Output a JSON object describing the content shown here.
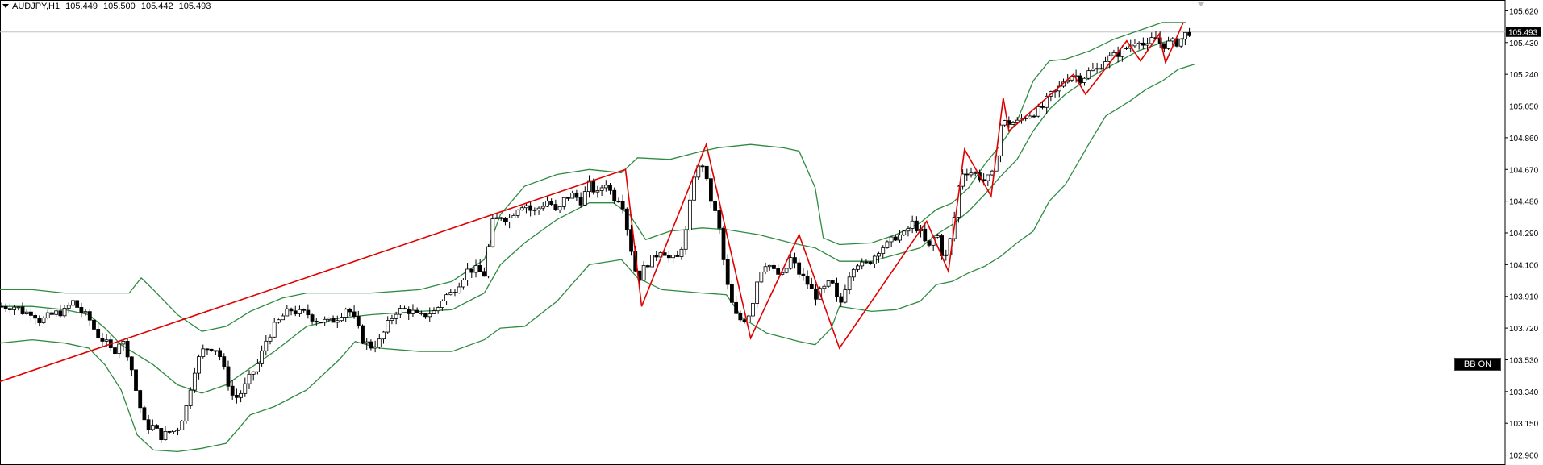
{
  "header": {
    "symbol": "AUDJPY,H1",
    "open": "105.449",
    "high": "105.500",
    "low": "105.442",
    "close": "105.493"
  },
  "bb_button": {
    "label": "BB ON"
  },
  "colors": {
    "bull": "#ffffff",
    "bear": "#000000",
    "bollinger": "#2e8b40",
    "zigzag": "#e00000",
    "price_line": "#c0c0c0"
  },
  "chart_data": {
    "type": "candlestick",
    "symbol": "AUDJPY",
    "timeframe": "H1",
    "ylim": [
      102.9,
      105.68
    ],
    "yticks": [
      "105.620",
      "105.430",
      "105.240",
      "105.050",
      "104.860",
      "104.670",
      "104.480",
      "104.290",
      "104.100",
      "103.910",
      "103.720",
      "103.530",
      "103.340",
      "103.150",
      "102.960"
    ],
    "current_price": "105.493",
    "indicators": [
      "Bollinger Bands",
      "ZigZag"
    ],
    "bollinger_upper": [
      [
        0,
        103.95
      ],
      [
        40,
        103.95
      ],
      [
        80,
        103.93
      ],
      [
        110,
        103.93
      ],
      [
        140,
        103.93
      ],
      [
        160,
        103.93
      ],
      [
        175,
        104.02
      ],
      [
        190,
        103.95
      ],
      [
        220,
        103.8
      ],
      [
        250,
        103.7
      ],
      [
        280,
        103.73
      ],
      [
        310,
        103.82
      ],
      [
        350,
        103.9
      ],
      [
        380,
        103.93
      ],
      [
        420,
        103.93
      ],
      [
        460,
        103.93
      ],
      [
        520,
        103.95
      ],
      [
        560,
        104.0
      ],
      [
        600,
        104.13
      ],
      [
        620,
        104.4
      ],
      [
        650,
        104.57
      ],
      [
        690,
        104.64
      ],
      [
        730,
        104.67
      ],
      [
        750,
        104.66
      ],
      [
        770,
        104.65
      ],
      [
        790,
        104.74
      ],
      [
        830,
        104.73
      ],
      [
        870,
        104.78
      ],
      [
        890,
        104.8
      ],
      [
        930,
        104.82
      ],
      [
        970,
        104.8
      ],
      [
        990,
        104.78
      ],
      [
        1010,
        104.56
      ],
      [
        1020,
        104.26
      ],
      [
        1040,
        104.22
      ],
      [
        1080,
        104.23
      ],
      [
        1110,
        104.28
      ],
      [
        1140,
        104.35
      ],
      [
        1160,
        104.43
      ],
      [
        1180,
        104.47
      ],
      [
        1200,
        104.56
      ],
      [
        1220,
        104.7
      ],
      [
        1240,
        104.82
      ],
      [
        1260,
        104.96
      ],
      [
        1280,
        105.2
      ],
      [
        1300,
        105.32
      ],
      [
        1320,
        105.33
      ],
      [
        1350,
        105.38
      ],
      [
        1380,
        105.45
      ],
      [
        1410,
        105.5
      ],
      [
        1440,
        105.55
      ],
      [
        1470,
        105.55
      ]
    ],
    "bollinger_middle": [
      [
        0,
        103.85
      ],
      [
        40,
        103.85
      ],
      [
        80,
        103.83
      ],
      [
        110,
        103.8
      ],
      [
        130,
        103.72
      ],
      [
        150,
        103.62
      ],
      [
        190,
        103.5
      ],
      [
        220,
        103.38
      ],
      [
        250,
        103.33
      ],
      [
        280,
        103.38
      ],
      [
        310,
        103.48
      ],
      [
        340,
        103.58
      ],
      [
        380,
        103.73
      ],
      [
        420,
        103.78
      ],
      [
        460,
        103.8
      ],
      [
        520,
        103.82
      ],
      [
        560,
        103.83
      ],
      [
        600,
        103.93
      ],
      [
        620,
        104.1
      ],
      [
        650,
        104.23
      ],
      [
        690,
        104.37
      ],
      [
        730,
        104.47
      ],
      [
        760,
        104.47
      ],
      [
        780,
        104.4
      ],
      [
        800,
        104.25
      ],
      [
        830,
        104.3
      ],
      [
        870,
        104.32
      ],
      [
        900,
        104.31
      ],
      [
        940,
        104.28
      ],
      [
        980,
        104.23
      ],
      [
        1010,
        104.2
      ],
      [
        1040,
        104.12
      ],
      [
        1080,
        104.12
      ],
      [
        1110,
        104.16
      ],
      [
        1140,
        104.2
      ],
      [
        1160,
        104.28
      ],
      [
        1180,
        104.34
      ],
      [
        1200,
        104.42
      ],
      [
        1220,
        104.52
      ],
      [
        1240,
        104.63
      ],
      [
        1260,
        104.73
      ],
      [
        1280,
        104.9
      ],
      [
        1300,
        105.03
      ],
      [
        1320,
        105.12
      ],
      [
        1350,
        105.22
      ],
      [
        1380,
        105.3
      ],
      [
        1410,
        105.38
      ],
      [
        1440,
        105.43
      ],
      [
        1470,
        105.46
      ]
    ],
    "bollinger_lower": [
      [
        0,
        103.63
      ],
      [
        40,
        103.65
      ],
      [
        80,
        103.63
      ],
      [
        110,
        103.6
      ],
      [
        130,
        103.5
      ],
      [
        150,
        103.35
      ],
      [
        170,
        103.08
      ],
      [
        190,
        102.99
      ],
      [
        220,
        102.98
      ],
      [
        250,
        103.0
      ],
      [
        280,
        103.03
      ],
      [
        310,
        103.2
      ],
      [
        340,
        103.25
      ],
      [
        380,
        103.35
      ],
      [
        420,
        103.53
      ],
      [
        440,
        103.64
      ],
      [
        470,
        103.6
      ],
      [
        520,
        103.58
      ],
      [
        560,
        103.58
      ],
      [
        600,
        103.65
      ],
      [
        620,
        103.72
      ],
      [
        650,
        103.73
      ],
      [
        690,
        103.88
      ],
      [
        730,
        104.1
      ],
      [
        770,
        104.13
      ],
      [
        790,
        104.02
      ],
      [
        820,
        103.95
      ],
      [
        870,
        103.93
      ],
      [
        900,
        103.92
      ],
      [
        920,
        103.78
      ],
      [
        950,
        103.69
      ],
      [
        990,
        103.64
      ],
      [
        1010,
        103.62
      ],
      [
        1030,
        103.72
      ],
      [
        1040,
        103.85
      ],
      [
        1080,
        103.82
      ],
      [
        1110,
        103.83
      ],
      [
        1140,
        103.88
      ],
      [
        1160,
        103.98
      ],
      [
        1180,
        104.0
      ],
      [
        1200,
        104.05
      ],
      [
        1220,
        104.09
      ],
      [
        1240,
        104.15
      ],
      [
        1260,
        104.23
      ],
      [
        1280,
        104.3
      ],
      [
        1300,
        104.48
      ],
      [
        1320,
        104.58
      ],
      [
        1350,
        104.83
      ],
      [
        1370,
        104.99
      ],
      [
        1400,
        105.08
      ],
      [
        1420,
        105.15
      ],
      [
        1440,
        105.2
      ],
      [
        1460,
        105.27
      ],
      [
        1480,
        105.3
      ]
    ],
    "zigzag": [
      [
        0,
        103.4
      ],
      [
        775,
        104.67
      ],
      [
        795,
        103.85
      ],
      [
        875,
        104.82
      ],
      [
        930,
        103.66
      ],
      [
        990,
        104.28
      ],
      [
        1040,
        103.6
      ],
      [
        1148,
        104.36
      ],
      [
        1175,
        104.06
      ],
      [
        1195,
        104.79
      ],
      [
        1228,
        104.51
      ],
      [
        1243,
        105.1
      ],
      [
        1250,
        104.9
      ],
      [
        1330,
        105.24
      ],
      [
        1345,
        105.12
      ],
      [
        1396,
        105.44
      ],
      [
        1413,
        105.32
      ],
      [
        1436,
        105.48
      ],
      [
        1444,
        105.31
      ],
      [
        1466,
        105.55
      ]
    ],
    "price_series": [
      [
        0,
        103.85
      ],
      [
        10,
        103.85
      ],
      [
        20,
        103.85
      ],
      [
        30,
        103.81
      ],
      [
        40,
        103.82
      ],
      [
        50,
        103.76
      ],
      [
        60,
        103.79
      ],
      [
        70,
        103.81
      ],
      [
        80,
        103.82
      ],
      [
        90,
        103.88
      ],
      [
        100,
        103.82
      ],
      [
        110,
        103.78
      ],
      [
        120,
        103.68
      ],
      [
        130,
        103.64
      ],
      [
        140,
        103.57
      ],
      [
        150,
        103.66
      ],
      [
        160,
        103.55
      ],
      [
        170,
        103.31
      ],
      [
        180,
        103.13
      ],
      [
        190,
        103.13
      ],
      [
        200,
        103.07
      ],
      [
        210,
        103.1
      ],
      [
        220,
        103.12
      ],
      [
        230,
        103.23
      ],
      [
        240,
        103.46
      ],
      [
        250,
        103.58
      ],
      [
        260,
        103.61
      ],
      [
        270,
        103.59
      ],
      [
        280,
        103.43
      ],
      [
        290,
        103.29
      ],
      [
        300,
        103.34
      ],
      [
        310,
        103.43
      ],
      [
        320,
        103.51
      ],
      [
        330,
        103.65
      ],
      [
        340,
        103.73
      ],
      [
        350,
        103.79
      ],
      [
        360,
        103.83
      ],
      [
        370,
        103.81
      ],
      [
        380,
        103.81
      ],
      [
        390,
        103.77
      ],
      [
        400,
        103.76
      ],
      [
        410,
        103.76
      ],
      [
        420,
        103.79
      ],
      [
        430,
        103.85
      ],
      [
        440,
        103.76
      ],
      [
        450,
        103.64
      ],
      [
        460,
        103.61
      ],
      [
        470,
        103.64
      ],
      [
        480,
        103.74
      ],
      [
        490,
        103.82
      ],
      [
        500,
        103.83
      ],
      [
        510,
        103.82
      ],
      [
        520,
        103.78
      ],
      [
        530,
        103.81
      ],
      [
        540,
        103.82
      ],
      [
        550,
        103.91
      ],
      [
        560,
        103.93
      ],
      [
        570,
        104.0
      ],
      [
        580,
        104.07
      ],
      [
        590,
        104.07
      ],
      [
        600,
        104.04
      ],
      [
        610,
        104.35
      ],
      [
        620,
        104.39
      ],
      [
        630,
        104.37
      ],
      [
        640,
        104.44
      ],
      [
        650,
        104.47
      ],
      [
        660,
        104.41
      ],
      [
        670,
        104.45
      ],
      [
        680,
        104.49
      ],
      [
        690,
        104.4
      ],
      [
        700,
        104.5
      ],
      [
        710,
        104.52
      ],
      [
        720,
        104.48
      ],
      [
        730,
        104.58
      ],
      [
        740,
        104.52
      ],
      [
        750,
        104.6
      ],
      [
        760,
        104.5
      ],
      [
        770,
        104.5
      ],
      [
        780,
        104.24
      ],
      [
        790,
        104.0
      ],
      [
        800,
        104.1
      ],
      [
        810,
        104.14
      ],
      [
        820,
        104.2
      ],
      [
        830,
        104.13
      ],
      [
        840,
        104.14
      ],
      [
        850,
        104.3
      ],
      [
        860,
        104.64
      ],
      [
        870,
        104.71
      ],
      [
        880,
        104.5
      ],
      [
        890,
        104.35
      ],
      [
        900,
        104.0
      ],
      [
        910,
        103.8
      ],
      [
        920,
        103.76
      ],
      [
        930,
        103.82
      ],
      [
        940,
        104.05
      ],
      [
        950,
        104.12
      ],
      [
        960,
        104.05
      ],
      [
        970,
        104.03
      ],
      [
        980,
        104.14
      ],
      [
        990,
        104.05
      ],
      [
        1000,
        103.99
      ],
      [
        1010,
        103.91
      ],
      [
        1020,
        103.95
      ],
      [
        1030,
        104.0
      ],
      [
        1040,
        103.84
      ],
      [
        1050,
        104.02
      ],
      [
        1060,
        104.12
      ],
      [
        1070,
        104.09
      ],
      [
        1080,
        104.13
      ],
      [
        1090,
        104.2
      ],
      [
        1100,
        104.22
      ],
      [
        1110,
        104.27
      ],
      [
        1120,
        104.28
      ],
      [
        1130,
        104.35
      ],
      [
        1140,
        104.3
      ],
      [
        1150,
        104.19
      ],
      [
        1160,
        104.3
      ],
      [
        1170,
        104.11
      ],
      [
        1180,
        104.3
      ],
      [
        1190,
        104.65
      ],
      [
        1200,
        104.66
      ],
      [
        1210,
        104.64
      ],
      [
        1220,
        104.6
      ],
      [
        1230,
        104.64
      ],
      [
        1240,
        104.95
      ],
      [
        1250,
        104.95
      ],
      [
        1260,
        104.95
      ],
      [
        1270,
        104.99
      ],
      [
        1280,
        105.01
      ],
      [
        1290,
        105.03
      ],
      [
        1300,
        105.11
      ],
      [
        1310,
        105.14
      ],
      [
        1320,
        105.22
      ],
      [
        1330,
        105.24
      ],
      [
        1340,
        105.21
      ],
      [
        1350,
        105.26
      ],
      [
        1360,
        105.27
      ],
      [
        1370,
        105.33
      ],
      [
        1380,
        105.35
      ],
      [
        1390,
        105.38
      ],
      [
        1400,
        105.41
      ],
      [
        1410,
        105.46
      ],
      [
        1420,
        105.39
      ],
      [
        1430,
        105.47
      ],
      [
        1440,
        105.41
      ],
      [
        1450,
        105.43
      ],
      [
        1460,
        105.43
      ],
      [
        1470,
        105.49
      ],
      [
        1480,
        105.5
      ]
    ]
  }
}
